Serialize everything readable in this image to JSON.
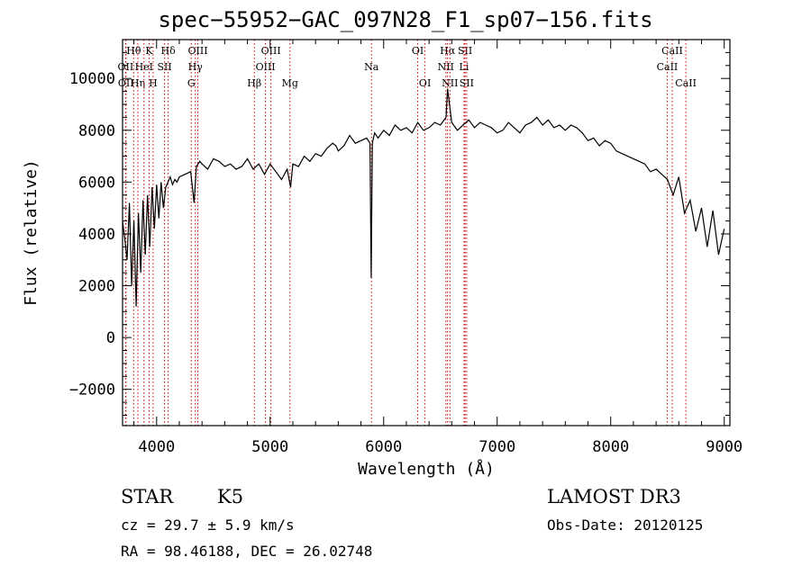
{
  "chart_data": {
    "type": "line",
    "title": "spec−55952−GAC_097N28_F1_sp07−156.fits",
    "xlabel": "Wavelength (Å)",
    "ylabel": "Flux (relative)",
    "xlim": [
      3700,
      9050
    ],
    "ylim": [
      -3400,
      11500
    ],
    "x_ticks": [
      4000,
      5000,
      6000,
      7000,
      8000,
      9000
    ],
    "y_ticks": [
      -2000,
      0,
      2000,
      4000,
      6000,
      8000,
      10000
    ],
    "y_tick_labels": [
      "−2000",
      "0",
      "2000",
      "4000",
      "6000",
      "8000",
      "10000"
    ],
    "grid": false,
    "series": [
      {
        "name": "flux",
        "x": [
          3700,
          3720,
          3740,
          3760,
          3780,
          3800,
          3820,
          3840,
          3860,
          3880,
          3900,
          3920,
          3940,
          3960,
          3980,
          4000,
          4020,
          4040,
          4060,
          4080,
          4100,
          4120,
          4140,
          4160,
          4180,
          4200,
          4250,
          4300,
          4330,
          4350,
          4380,
          4400,
          4450,
          4500,
          4550,
          4600,
          4650,
          4700,
          4750,
          4800,
          4850,
          4900,
          4950,
          5000,
          5050,
          5100,
          5150,
          5180,
          5200,
          5250,
          5300,
          5350,
          5400,
          5450,
          5500,
          5550,
          5580,
          5600,
          5650,
          5700,
          5750,
          5800,
          5850,
          5880,
          5890,
          5900,
          5920,
          5950,
          6000,
          6050,
          6100,
          6150,
          6200,
          6250,
          6300,
          6350,
          6400,
          6450,
          6500,
          6550,
          6563,
          6600,
          6650,
          6700,
          6750,
          6800,
          6850,
          6900,
          6950,
          7000,
          7050,
          7100,
          7150,
          7200,
          7250,
          7300,
          7350,
          7400,
          7450,
          7500,
          7550,
          7600,
          7650,
          7700,
          7750,
          7800,
          7850,
          7900,
          7950,
          8000,
          8050,
          8100,
          8150,
          8200,
          8250,
          8300,
          8350,
          8400,
          8450,
          8500,
          8550,
          8600,
          8650,
          8700,
          8750,
          8800,
          8850,
          8900,
          8950,
          9000
        ],
        "y": [
          4500,
          3800,
          3000,
          5200,
          2000,
          4500,
          1200,
          4800,
          2500,
          5300,
          3200,
          5500,
          3500,
          5800,
          4200,
          5900,
          4600,
          6000,
          5000,
          5800,
          6000,
          6200,
          5900,
          6100,
          6000,
          6200,
          6300,
          6400,
          5200,
          6600,
          6800,
          6700,
          6500,
          6900,
          6800,
          6600,
          6700,
          6500,
          6600,
          6900,
          6500,
          6700,
          6300,
          6700,
          6400,
          6100,
          6500,
          5800,
          6700,
          6600,
          7000,
          6800,
          7100,
          7000,
          7300,
          7500,
          7400,
          7200,
          7400,
          7800,
          7500,
          7600,
          7700,
          7500,
          2300,
          7500,
          7900,
          7700,
          8000,
          7800,
          8200,
          8000,
          8100,
          7900,
          8300,
          8000,
          8100,
          8300,
          8200,
          8500,
          9600,
          8300,
          8000,
          8200,
          8400,
          8100,
          8300,
          8200,
          8100,
          7900,
          8000,
          8300,
          8100,
          7900,
          8200,
          8300,
          8500,
          8200,
          8400,
          8100,
          8200,
          8000,
          8200,
          8100,
          7900,
          7600,
          7700,
          7400,
          7600,
          7500,
          7200,
          7100,
          7000,
          6900,
          6800,
          6700,
          6400,
          6500,
          6300,
          6100,
          5500,
          6200,
          4800,
          5300,
          4100,
          5000,
          3500,
          4900,
          3200,
          4200
        ]
      }
    ],
    "line_markers": [
      {
        "label": "Hθ",
        "x": 3798,
        "row": 1
      },
      {
        "label": "OII",
        "x": 3727,
        "row": 2
      },
      {
        "label": "OII",
        "x": 3730,
        "row": 3
      },
      {
        "label": "Hη",
        "x": 3835,
        "row": 3
      },
      {
        "label": "HeI",
        "x": 3889,
        "row": 2
      },
      {
        "label": "K",
        "x": 3934,
        "row": 1
      },
      {
        "label": "H",
        "x": 3969,
        "row": 3
      },
      {
        "label": "SII",
        "x": 4070,
        "row": 2
      },
      {
        "label": "Hδ",
        "x": 4102,
        "row": 1
      },
      {
        "label": "OIII",
        "x": 4363,
        "row": 1
      },
      {
        "label": "Hγ",
        "x": 4341,
        "row": 2
      },
      {
        "label": "G",
        "x": 4305,
        "row": 3
      },
      {
        "label": "Hβ",
        "x": 4861,
        "row": 3
      },
      {
        "label": "OIII",
        "x": 5007,
        "row": 1
      },
      {
        "label": "OIII",
        "x": 4959,
        "row": 2
      },
      {
        "label": "Mg",
        "x": 5175,
        "row": 3
      },
      {
        "label": "Na",
        "x": 5893,
        "row": 2
      },
      {
        "label": "OI",
        "x": 6300,
        "row": 1
      },
      {
        "label": "OI",
        "x": 6364,
        "row": 3
      },
      {
        "label": "Hα",
        "x": 6563,
        "row": 1
      },
      {
        "label": "NII",
        "x": 6548,
        "row": 2
      },
      {
        "label": "NII",
        "x": 6584,
        "row": 3
      },
      {
        "label": "SII",
        "x": 6717,
        "row": 1
      },
      {
        "label": "Li",
        "x": 6708,
        "row": 2
      },
      {
        "label": "SII",
        "x": 6731,
        "row": 3
      },
      {
        "label": "CaII",
        "x": 8542,
        "row": 1
      },
      {
        "label": "CaII",
        "x": 8498,
        "row": 2
      },
      {
        "label": "CaII",
        "x": 8662,
        "row": 3
      }
    ]
  },
  "info": {
    "class_label": "STAR",
    "subclass": "K5",
    "redshift": "cz = 29.7 ± 5.9 km/s",
    "coords": "RA =  98.46188, DEC =  26.02748",
    "survey": "LAMOST DR3",
    "obs_date": "Obs-Date: 20120125"
  },
  "colors": {
    "axis": "#000000",
    "spectrum": "#000000",
    "marker_line": "#cc0000",
    "background": "#ffffff"
  }
}
